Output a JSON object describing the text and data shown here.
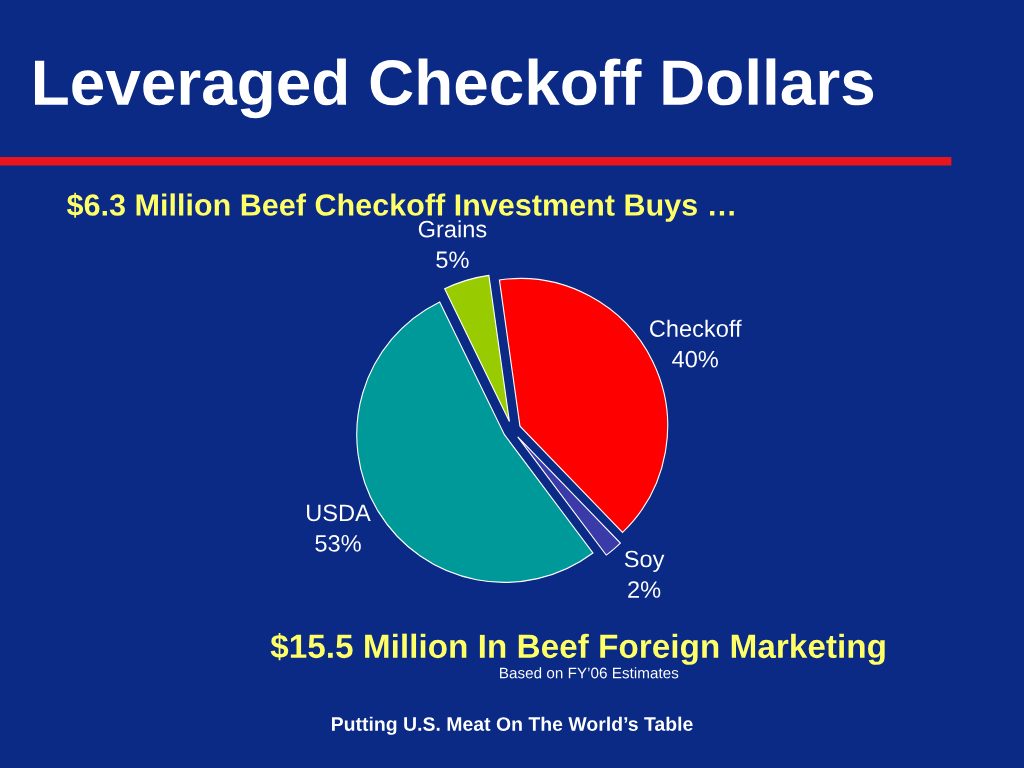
{
  "chart_data": {
    "type": "pie",
    "title": "Leveraged Checkoff Dollars",
    "subtitle": "$6.3 Million Beef Checkoff Investment Buys …",
    "categories": [
      "Checkoff",
      "Soy",
      "USDA",
      "Grains"
    ],
    "values": [
      40,
      2,
      53,
      5
    ],
    "value_labels": [
      "40%",
      "2%",
      "53%",
      "5%"
    ],
    "colors": [
      "#ff0000",
      "#3a3aa8",
      "#009999",
      "#99cc00"
    ],
    "annotations": [
      "$15.5 Million In Beef Foreign Marketing",
      "Based on FY’06 Estimates",
      "Putting U.S. Meat On The World’s Table"
    ],
    "legend": false
  }
}
